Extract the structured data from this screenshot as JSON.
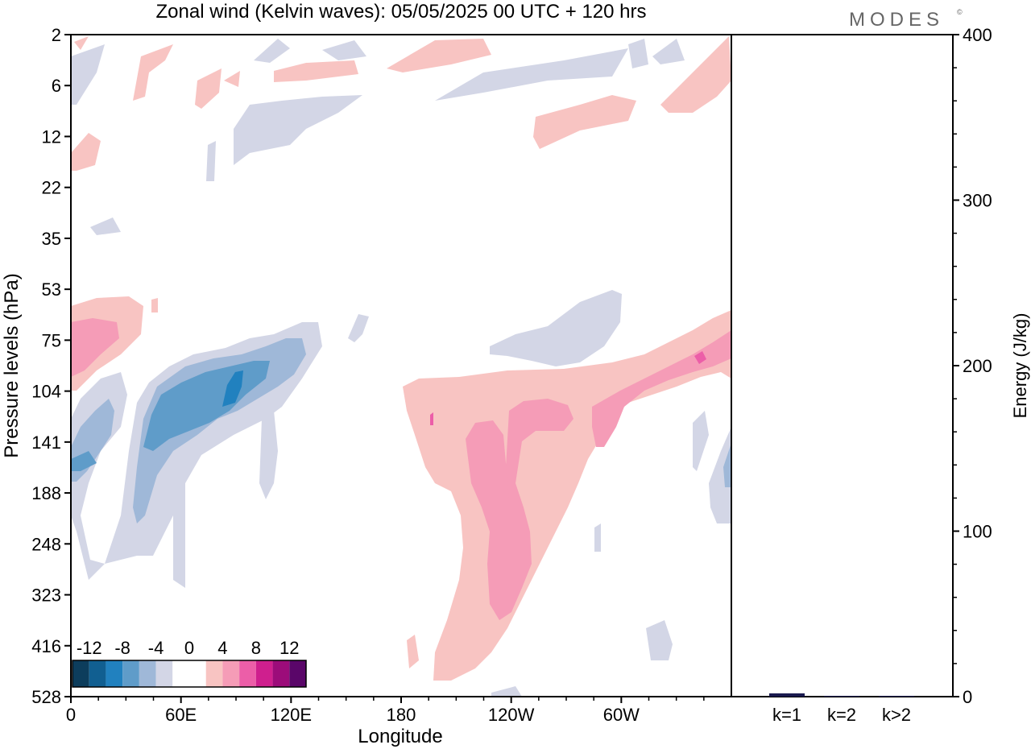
{
  "title": "Zonal wind (Kelvin waves):  05/05/2025  00 UTC  + 120 hrs",
  "logo": "MODES",
  "logo_mark": "©",
  "chart_data": [
    {
      "type": "heatmap",
      "xlabel": "Longitude",
      "ylabel": "Pressure levels (hPa)",
      "x_ticks": [
        "0",
        "60E",
        "120E",
        "180",
        "120W",
        "60W"
      ],
      "y_ticks": [
        "2",
        "6",
        "12",
        "22",
        "35",
        "53",
        "75",
        "104",
        "141",
        "188",
        "248",
        "323",
        "416",
        "528"
      ],
      "y_scale": "log (pressure)",
      "colorbar": {
        "labels": [
          "-12",
          "-8",
          "-4",
          "0",
          "4",
          "8",
          "12"
        ],
        "colors": [
          "#0d3d5c",
          "#115f91",
          "#2181bf",
          "#5f9cc9",
          "#9fb8d8",
          "#d3d6e6",
          "#ffffff",
          "#ffffff",
          "#f8c4c2",
          "#f59cb7",
          "#ec5ea8",
          "#cf1f8e",
          "#9c0c7a",
          "#5a0669"
        ]
      },
      "regions": [
        {
          "name": "easterly band 60E-120E",
          "sign": "negative",
          "min_value": -12,
          "pressure_range": [
            75,
            248
          ]
        },
        {
          "name": "westerly wedge 180-60W",
          "sign": "positive",
          "max_value": 8,
          "pressure_range": [
            75,
            528
          ]
        },
        {
          "name": "westerly band near 0",
          "sign": "positive",
          "max_value": 8,
          "pressure_range": [
            53,
            104
          ]
        }
      ]
    },
    {
      "type": "bar",
      "ylabel": "Energy (J/kg)",
      "categories": [
        "k=1",
        "k=2",
        "k>2"
      ],
      "values": [
        2,
        0.5,
        0.5
      ],
      "ylim": [
        0,
        400
      ],
      "y_ticks": [
        "0",
        "100",
        "200",
        "300",
        "400"
      ],
      "bar_color": "#1a1a4e"
    }
  ]
}
